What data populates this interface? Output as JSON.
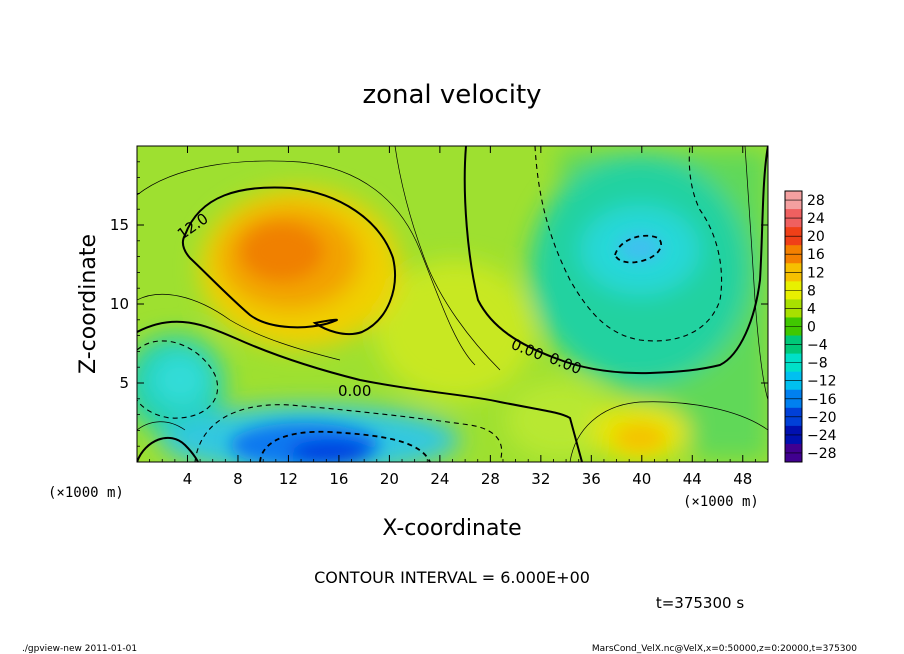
{
  "chart_data": {
    "type": "heatmap",
    "title": "zonal velocity",
    "xlabel": "X-coordinate",
    "ylabel": "Z-coordinate",
    "x_unit_left": "(×1000 m)",
    "x_unit_right": "(×1000 m)",
    "xlim": [
      0,
      50
    ],
    "ylim": [
      0,
      20
    ],
    "x_ticks": [
      4,
      8,
      12,
      16,
      20,
      24,
      28,
      32,
      36,
      40,
      44,
      48
    ],
    "y_ticks": [
      5,
      10,
      15
    ],
    "colorbar": {
      "levels": [
        28,
        24,
        20,
        16,
        12,
        8,
        4,
        0,
        -4,
        -8,
        -12,
        -16,
        -20,
        -24,
        -28
      ],
      "level_labels": [
        "28",
        "24",
        "20",
        "16",
        "12",
        "8",
        "4",
        "0",
        "−4",
        "−8",
        "−12",
        "−16",
        "−20",
        "−24",
        "−28"
      ],
      "colors": [
        "#f4a0a0",
        "#ef6060",
        "#f04018",
        "#f48000",
        "#f6c000",
        "#e8f000",
        "#a8e000",
        "#40c800",
        "#00c878",
        "#00e0c8",
        "#00c0f0",
        "#0080f0",
        "#0040d8",
        "#0010b0",
        "#400090"
      ]
    },
    "contour_labels": [
      "12.0",
      "0.00",
      "0.00",
      "0.00"
    ],
    "contour_interval_text": "CONTOUR INTERVAL = 6.000E+00",
    "time_text": "t=375300 s",
    "features": [
      {
        "name": "positive core",
        "x": 12,
        "z": 13,
        "value": 16
      },
      {
        "name": "negative core lower",
        "x": 14,
        "z": 1,
        "value": -16
      },
      {
        "name": "negative core upper right",
        "x": 39,
        "z": 13,
        "value": -8
      },
      {
        "name": "negative lobe left",
        "x": 3,
        "z": 5,
        "value": -8
      },
      {
        "name": "positive lobe lower right",
        "x": 40,
        "z": 2,
        "value": 12
      }
    ]
  },
  "footer": {
    "left": "./gpview-new  2011-01-01",
    "right": "MarsCond_VelX.nc@VelX,x=0:50000,z=0:20000,t=375300"
  }
}
